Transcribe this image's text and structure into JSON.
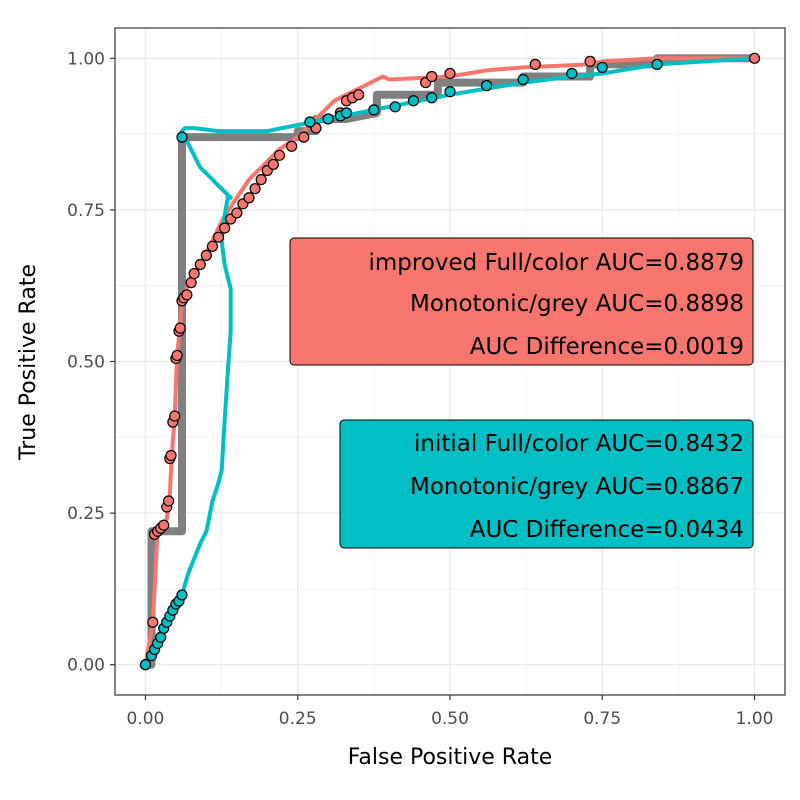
{
  "chart_data": {
    "type": "line",
    "xlabel": "False Positive Rate",
    "ylabel": "True Positive Rate",
    "xlim": [
      -0.05,
      1.05
    ],
    "ylim": [
      -0.05,
      1.05
    ],
    "x_ticks": [
      0,
      0.25,
      0.5,
      0.75,
      1
    ],
    "x_tick_labels": [
      "0.00",
      "0.25",
      "0.50",
      "0.75",
      "1.00"
    ],
    "y_ticks": [
      0,
      0.25,
      0.5,
      0.75,
      1
    ],
    "y_tick_labels": [
      "0.00",
      "0.25",
      "0.50",
      "0.75",
      "1.00"
    ],
    "grid": true,
    "series": [
      {
        "color": "#808080",
        "kind": "step",
        "x": [
          0,
          0.01,
          0.01,
          0.06,
          0.06,
          0.25,
          0.25,
          0.28,
          0.28,
          0.33,
          0.38,
          0.38,
          0.48,
          0.48,
          0.62,
          0.62,
          0.73,
          0.73,
          0.84,
          0.84,
          1.0
        ],
        "y": [
          0,
          0,
          0.22,
          0.22,
          0.87,
          0.87,
          0.88,
          0.88,
          0.9,
          0.9,
          0.91,
          0.94,
          0.94,
          0.96,
          0.96,
          0.97,
          0.97,
          0.99,
          0.99,
          1.0,
          1.0
        ]
      },
      {
        "color": "#F8766D",
        "kind": "line",
        "x": [
          0,
          0.012,
          0.02,
          0.025,
          0.035,
          0.04,
          0.043,
          0.048,
          0.052,
          0.057,
          0.06,
          0.065,
          0.07,
          0.08,
          0.09,
          0.1,
          0.11,
          0.12,
          0.13,
          0.14,
          0.15,
          0.16,
          0.17,
          0.18,
          0.19,
          0.2,
          0.21,
          0.22,
          0.235,
          0.25,
          0.27,
          0.29,
          0.31,
          0.33,
          0.35,
          0.37,
          0.39,
          0.4,
          0.5,
          0.56,
          0.62,
          0.73,
          0.75,
          0.84,
          1.0
        ],
        "y": [
          0,
          0.07,
          0.22,
          0.23,
          0.24,
          0.28,
          0.34,
          0.41,
          0.51,
          0.56,
          0.6,
          0.61,
          0.63,
          0.64,
          0.66,
          0.68,
          0.7,
          0.72,
          0.74,
          0.755,
          0.77,
          0.785,
          0.8,
          0.81,
          0.82,
          0.83,
          0.84,
          0.85,
          0.86,
          0.87,
          0.89,
          0.91,
          0.93,
          0.94,
          0.95,
          0.96,
          0.97,
          0.965,
          0.97,
          0.98,
          0.985,
          0.99,
          0.995,
          1.0,
          1.0
        ]
      },
      {
        "color": "#00BFC4",
        "kind": "line",
        "x": [
          0,
          0.01,
          0.02,
          0.03,
          0.04,
          0.05,
          0.06,
          0.07,
          0.09,
          0.1,
          0.11,
          0.12,
          0.125,
          0.13,
          0.135,
          0.14,
          0.14,
          0.13,
          0.125,
          0.13,
          0.135,
          0.14,
          0.13,
          0.12,
          0.11,
          0.1,
          0.09,
          0.085,
          0.075,
          0.07,
          0.062,
          0.06,
          0.065,
          0.08,
          0.12,
          0.2,
          0.25,
          0.3,
          0.35,
          0.4,
          0.45,
          0.5,
          0.56,
          0.62,
          0.7,
          0.75,
          0.84,
          1.0
        ],
        "y": [
          0,
          0.02,
          0.04,
          0.06,
          0.08,
          0.1,
          0.115,
          0.15,
          0.2,
          0.22,
          0.27,
          0.3,
          0.32,
          0.4,
          0.48,
          0.55,
          0.62,
          0.66,
          0.7,
          0.74,
          0.77,
          0.77,
          0.78,
          0.79,
          0.8,
          0.81,
          0.82,
          0.83,
          0.85,
          0.86,
          0.87,
          0.88,
          0.885,
          0.885,
          0.88,
          0.88,
          0.89,
          0.9,
          0.91,
          0.92,
          0.93,
          0.94,
          0.95,
          0.96,
          0.97,
          0.975,
          0.99,
          1.0
        ]
      }
    ],
    "points": [
      {
        "color": "#F8766D",
        "x": [
          0,
          0.012,
          0.015,
          0.02,
          0.025,
          0.03,
          0.035,
          0.038,
          0.04,
          0.042,
          0.045,
          0.048,
          0.05,
          0.052,
          0.055,
          0.057,
          0.06,
          0.063,
          0.068,
          0.075,
          0.08,
          0.09,
          0.1,
          0.11,
          0.12,
          0.13,
          0.14,
          0.15,
          0.16,
          0.17,
          0.18,
          0.19,
          0.2,
          0.21,
          0.22,
          0.24,
          0.26,
          0.28,
          0.3,
          0.32,
          0.33,
          0.34,
          0.35,
          0.46,
          0.47,
          0.5,
          0.64,
          0.73,
          1.0
        ],
        "y": [
          0,
          0.07,
          0.215,
          0.22,
          0.225,
          0.23,
          0.26,
          0.27,
          0.34,
          0.345,
          0.4,
          0.41,
          0.505,
          0.51,
          0.55,
          0.555,
          0.6,
          0.605,
          0.61,
          0.63,
          0.645,
          0.66,
          0.675,
          0.69,
          0.705,
          0.72,
          0.735,
          0.745,
          0.76,
          0.77,
          0.785,
          0.8,
          0.815,
          0.825,
          0.84,
          0.855,
          0.87,
          0.885,
          0.9,
          0.91,
          0.93,
          0.935,
          0.94,
          0.96,
          0.97,
          0.975,
          0.99,
          0.995,
          1.0
        ]
      },
      {
        "color": "#00BFC4",
        "x": [
          0,
          0.01,
          0.015,
          0.02,
          0.025,
          0.03,
          0.035,
          0.04,
          0.045,
          0.05,
          0.055,
          0.06,
          0.06,
          0.27,
          0.3,
          0.32,
          0.33,
          0.375,
          0.41,
          0.44,
          0.47,
          0.5,
          0.56,
          0.62,
          0.7,
          0.75,
          0.84
        ],
        "y": [
          0,
          0.015,
          0.025,
          0.035,
          0.045,
          0.06,
          0.07,
          0.08,
          0.09,
          0.1,
          0.105,
          0.115,
          0.87,
          0.895,
          0.9,
          0.905,
          0.91,
          0.915,
          0.92,
          0.93,
          0.935,
          0.945,
          0.955,
          0.965,
          0.975,
          0.985,
          0.99
        ]
      }
    ],
    "annotations": [
      {
        "fill": "#F8766D",
        "lines": [
          "improved Full/color AUC=0.8879",
          "Monotonic/grey AUC=0.8898",
          "AUC Difference=0.0019"
        ]
      },
      {
        "fill": "#00BFC4",
        "lines": [
          "initial Full/color AUC=0.8432",
          "Monotonic/grey AUC=0.8867",
          "AUC Difference=0.0434"
        ]
      }
    ]
  }
}
